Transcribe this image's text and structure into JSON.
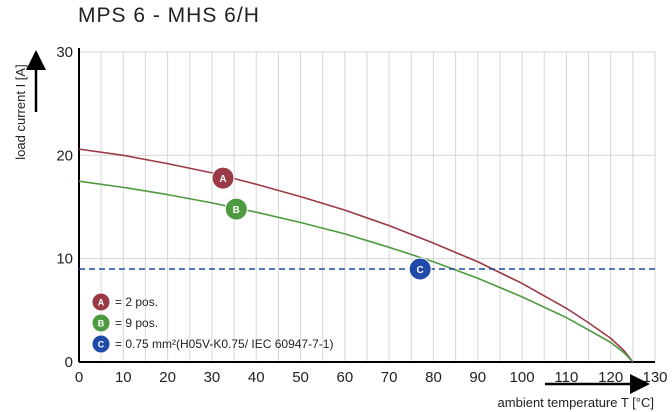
{
  "chart_data": {
    "type": "line",
    "title": "MPS 6 - MHS 6/H",
    "xlabel": "ambient temperature T [°C]",
    "ylabel": "load current I [A]",
    "xlim": [
      0,
      130
    ],
    "ylim": [
      0,
      30
    ],
    "x_ticks": [
      0,
      10,
      20,
      30,
      40,
      50,
      60,
      70,
      80,
      90,
      100,
      110,
      120,
      130
    ],
    "y_ticks": [
      0,
      10,
      20,
      30
    ],
    "grid": true,
    "legend_position": "bottom-left",
    "series": [
      {
        "marker_label": "A",
        "legend": "= 2 pos.",
        "color": "#9b3a47",
        "style": "solid",
        "x": [
          0,
          10,
          20,
          30,
          40,
          50,
          60,
          70,
          80,
          90,
          100,
          110,
          115,
          120,
          123,
          125
        ],
        "y": [
          20.6,
          20.0,
          19.2,
          18.3,
          17.2,
          16.0,
          14.7,
          13.2,
          11.5,
          9.7,
          7.6,
          5.2,
          3.8,
          2.3,
          1.1,
          0
        ]
      },
      {
        "marker_label": "B",
        "legend": "= 9 pos.",
        "color": "#4e9a3f",
        "style": "solid",
        "x": [
          0,
          10,
          20,
          30,
          40,
          50,
          60,
          70,
          80,
          90,
          100,
          110,
          115,
          120,
          123,
          125
        ],
        "y": [
          17.5,
          16.9,
          16.2,
          15.4,
          14.5,
          13.5,
          12.4,
          11.1,
          9.7,
          8.1,
          6.3,
          4.3,
          3.1,
          1.9,
          0.9,
          0
        ]
      },
      {
        "marker_label": "C",
        "legend": "= 0.75 mm²(H05V-K0.75/ IEC 60947-7-1)",
        "color": "#1f4aa8",
        "style": "dashed",
        "x": [
          0,
          130
        ],
        "y": [
          9,
          9
        ]
      }
    ],
    "markers": [
      {
        "label": "A",
        "x": 32.5,
        "y": 17.8,
        "color": "#9b3a47"
      },
      {
        "label": "B",
        "x": 35.5,
        "y": 14.8,
        "color": "#4e9a3f"
      },
      {
        "label": "C",
        "x": 77.0,
        "y": 9.0,
        "color": "#1f4aa8"
      }
    ]
  }
}
